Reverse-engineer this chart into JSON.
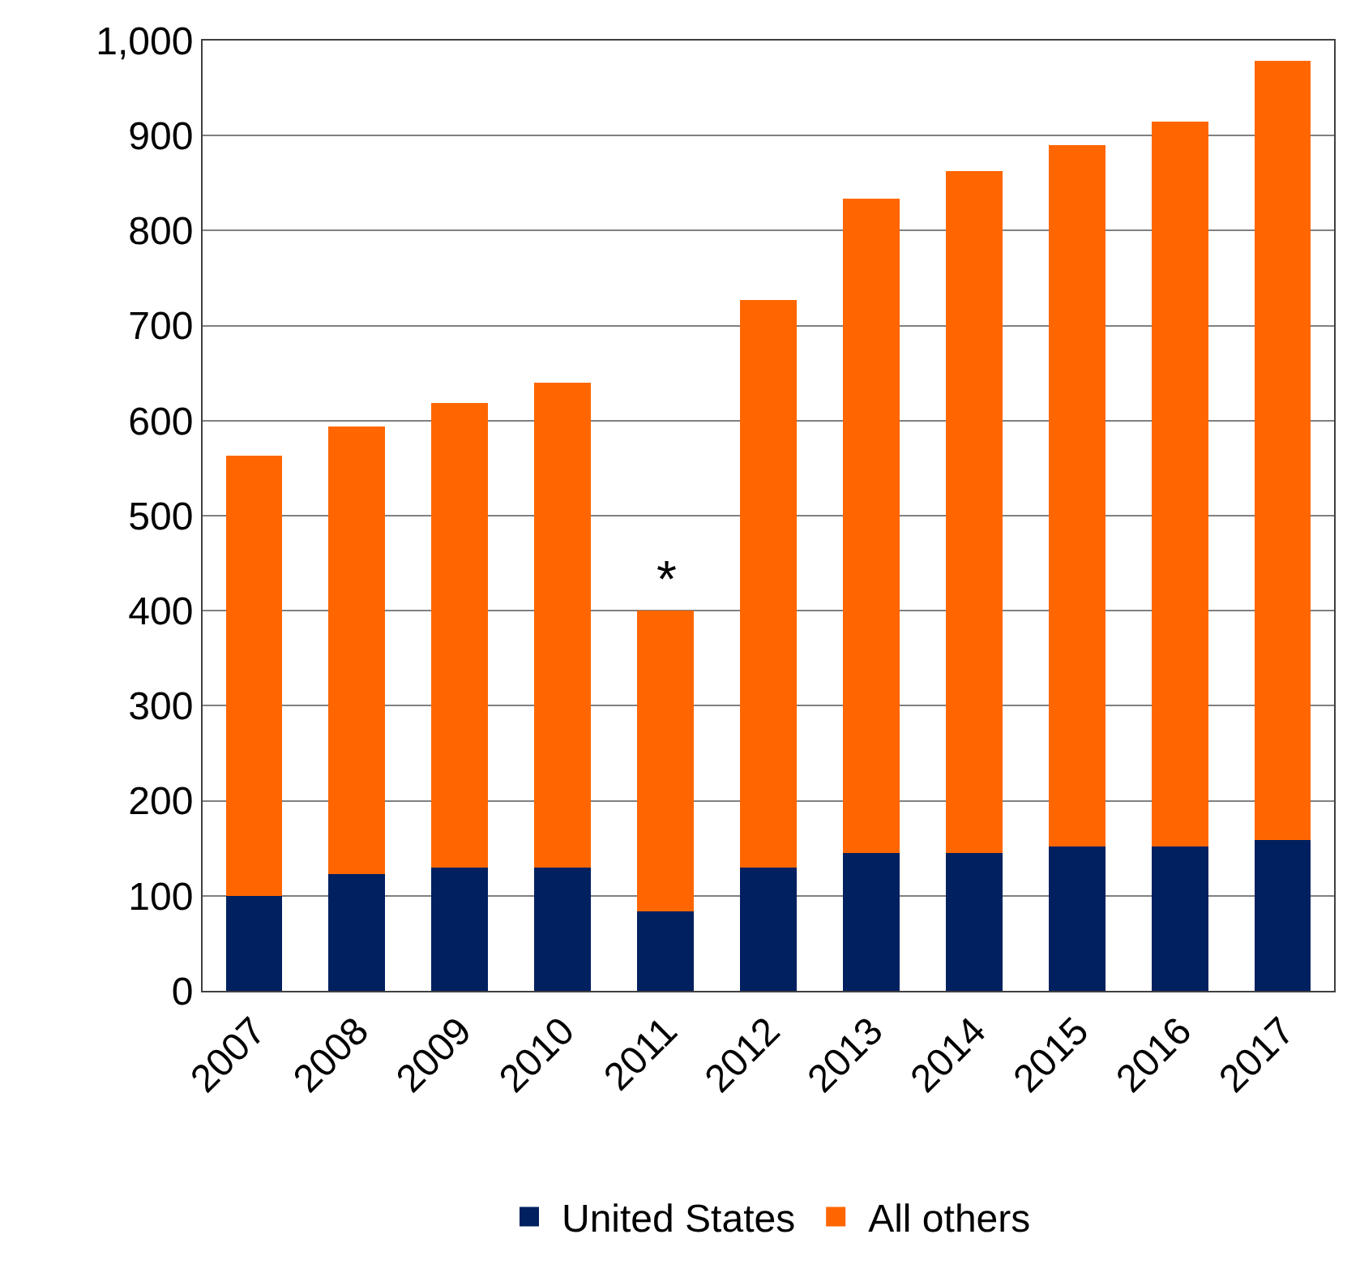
{
  "chart_data": {
    "type": "bar",
    "stacked": true,
    "categories": [
      "2007",
      "2008",
      "2009",
      "2010",
      "2011",
      "2012",
      "2013",
      "2014",
      "2015",
      "2016",
      "2017"
    ],
    "series": [
      {
        "name": "United States",
        "color": "#002060",
        "values": [
          100,
          123,
          130,
          130,
          84,
          130,
          145,
          145,
          152,
          152,
          159
        ]
      },
      {
        "name": "All others",
        "color": "#ff6600",
        "values": [
          463,
          471,
          489,
          510,
          316,
          597,
          689,
          718,
          738,
          763,
          820
        ]
      }
    ],
    "ylim": [
      0,
      1000
    ],
    "yticks": [
      0,
      100,
      200,
      300,
      400,
      500,
      600,
      700,
      800,
      900,
      {
        "value": 1000,
        "label": "1,000"
      }
    ],
    "grid": "y",
    "legend": "bottom",
    "annotations": [
      {
        "text": "*",
        "x": "2011",
        "y": 400
      }
    ]
  }
}
